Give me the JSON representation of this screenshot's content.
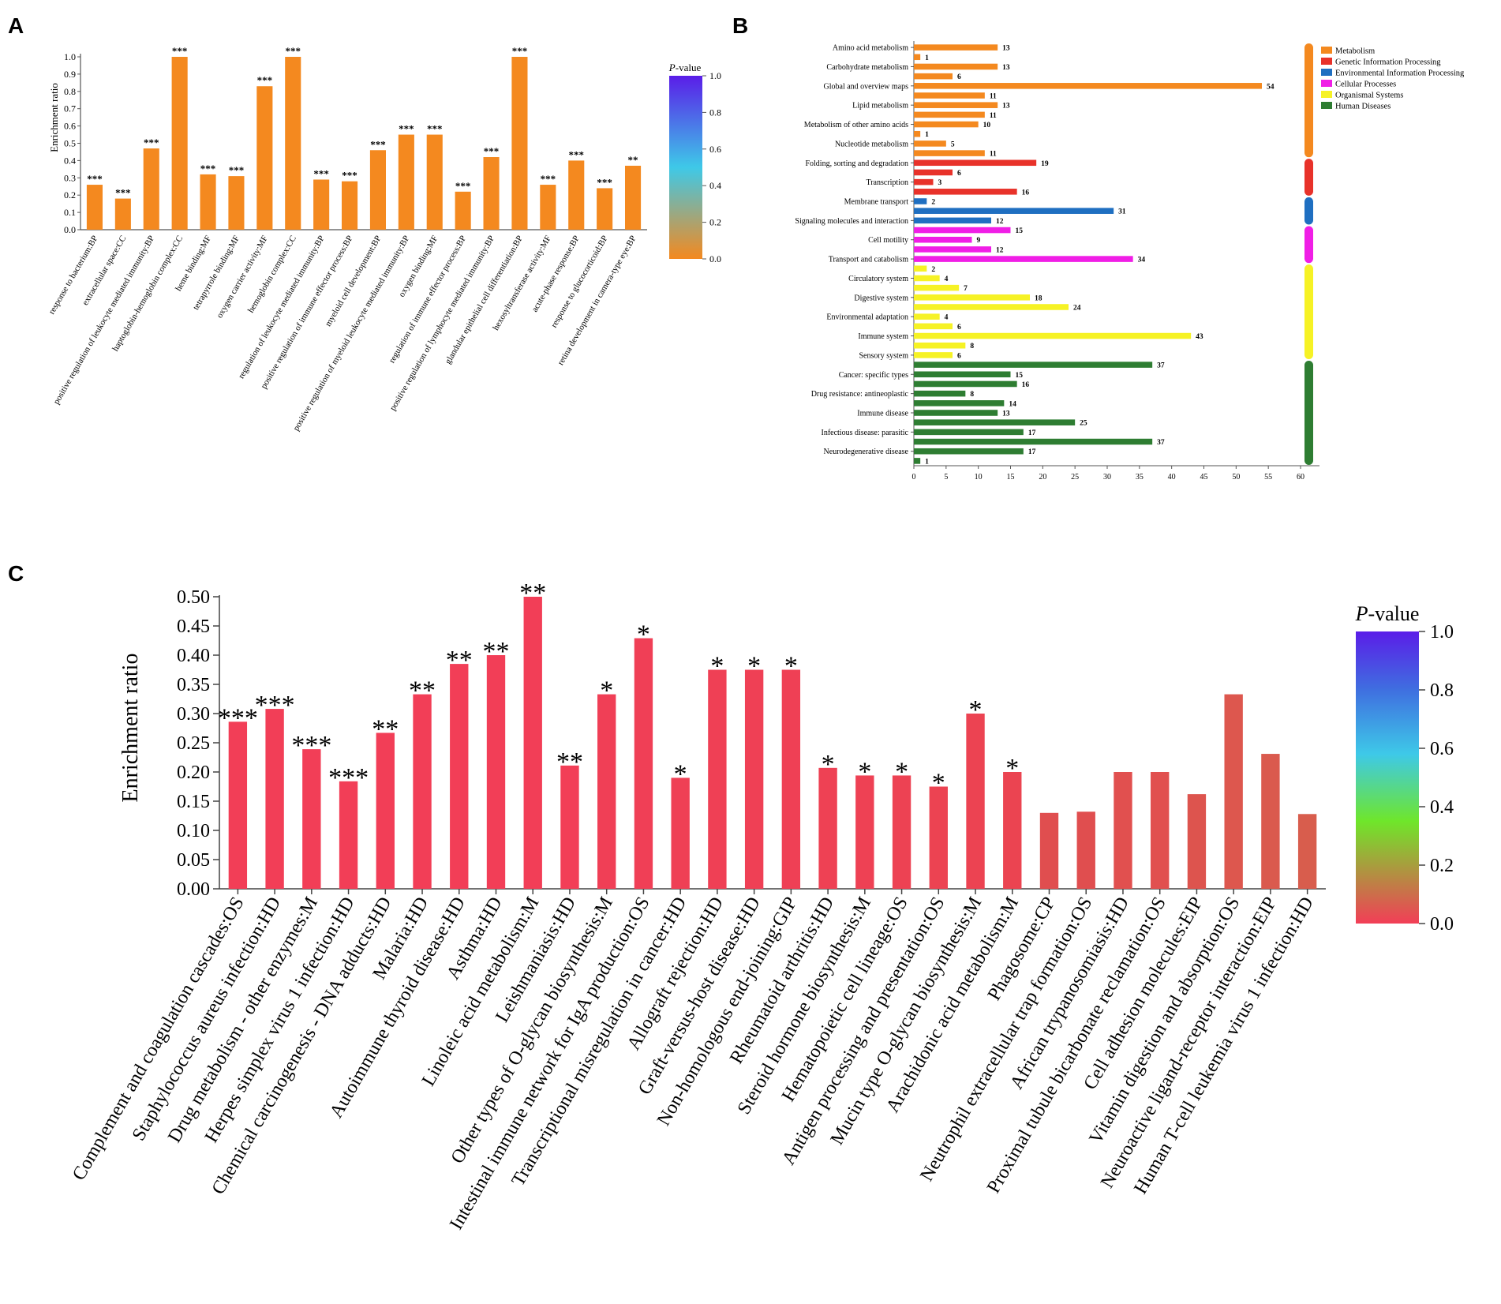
{
  "panels": [
    {
      "label": "A",
      "chart_data": {
        "type": "bar",
        "ylabel": "Enrichment ratio",
        "ylim": [
          0,
          1.0
        ],
        "yticks": [
          "0.0",
          "0.1",
          "0.2",
          "0.3",
          "0.4",
          "0.5",
          "0.6",
          "0.7",
          "0.8",
          "0.9",
          "1.0"
        ],
        "bar_color": "#f4891f",
        "categories": [
          "response to bacterium:BP",
          "extracellular space:CC",
          "positive regulation of leukocyte mediated immunity:BP",
          "haptoglobin-hemoglobin complex:CC",
          "heme binding:MF",
          "tetrapyrrole binding:MF",
          "oxygen carrier activity:MF",
          "hemoglobin complex:CC",
          "regulation of leukocyte mediated immunity:BP",
          "positive regulation of immune effector process:BP",
          "myeloid cell development:BP",
          "positive regulation of myeloid leukocyte mediated immunity:BP",
          "oxygen binding:MF",
          "regulation of immune effector process:BP",
          "positive regulation of lymphocyte mediated immunity:BP",
          "glandular epithelial cell differentiation:BP",
          "hexosyltransferase activity:MF",
          "acute-phase response:BP",
          "response to glucocorticoid:BP",
          "retina development in camera-type eye:BP"
        ],
        "values": [
          0.26,
          0.18,
          0.47,
          1.0,
          0.32,
          0.31,
          0.83,
          1.0,
          0.29,
          0.28,
          0.46,
          0.55,
          0.55,
          0.22,
          0.42,
          1.0,
          0.26,
          0.4,
          0.24,
          0.37
        ],
        "significance": [
          "***",
          "***",
          "***",
          "***",
          "***",
          "***",
          "***",
          "***",
          "***",
          "***",
          "***",
          "***",
          "***",
          "***",
          "***",
          "***",
          "***",
          "***",
          "***",
          "**"
        ],
        "colorbar": {
          "title": "P-value",
          "title_italic": "P",
          "title_rest": "-value",
          "ticks": [
            "0.0",
            "0.2",
            "0.4",
            "0.6",
            "0.8",
            "1.0"
          ],
          "range": [
            0,
            1
          ],
          "colors": [
            "#f4891f",
            "#3ec9e8",
            "#5a1de8"
          ]
        }
      }
    },
    {
      "label": "B",
      "chart_data": {
        "type": "bar",
        "orientation": "horizontal",
        "xlim": [
          0,
          60
        ],
        "xticks": [
          "0",
          "5",
          "10",
          "15",
          "20",
          "25",
          "30",
          "35",
          "40",
          "45",
          "50",
          "55",
          "60"
        ],
        "bars": [
          {
            "label": "Amino acid metabolism",
            "value": 13,
            "group": 0
          },
          {
            "label": "",
            "value": 1,
            "group": 0
          },
          {
            "label": "Carbohydrate metabolism",
            "value": 13,
            "group": 0
          },
          {
            "label": "",
            "value": 6,
            "group": 0
          },
          {
            "label": "Global and overview maps",
            "value": 54,
            "group": 0
          },
          {
            "label": "",
            "value": 11,
            "group": 0
          },
          {
            "label": "Lipid metabolism",
            "value": 13,
            "group": 0
          },
          {
            "label": "",
            "value": 11,
            "group": 0
          },
          {
            "label": "Metabolism of other amino acids",
            "value": 10,
            "group": 0
          },
          {
            "label": "",
            "value": 1,
            "group": 0
          },
          {
            "label": "Nucleotide metabolism",
            "value": 5,
            "group": 0
          },
          {
            "label": "",
            "value": 11,
            "group": 0
          },
          {
            "label": "Folding, sorting and degradation",
            "value": 19,
            "group": 1
          },
          {
            "label": "",
            "value": 6,
            "group": 1
          },
          {
            "label": "Transcription",
            "value": 3,
            "group": 1
          },
          {
            "label": "",
            "value": 16,
            "group": 1
          },
          {
            "label": "Membrane transport",
            "value": 2,
            "group": 2
          },
          {
            "label": "",
            "value": 31,
            "group": 2
          },
          {
            "label": "Signaling molecules and interaction",
            "value": 12,
            "group": 2
          },
          {
            "label": "",
            "value": 15,
            "group": 3
          },
          {
            "label": "Cell motility",
            "value": 9,
            "group": 3
          },
          {
            "label": "",
            "value": 12,
            "group": 3
          },
          {
            "label": "Transport and catabolism",
            "value": 34,
            "group": 3
          },
          {
            "label": "",
            "value": 2,
            "group": 4
          },
          {
            "label": "Circulatory system",
            "value": 4,
            "group": 4
          },
          {
            "label": "",
            "value": 7,
            "group": 4
          },
          {
            "label": "Digestive system",
            "value": 18,
            "group": 4
          },
          {
            "label": "",
            "value": 24,
            "group": 4
          },
          {
            "label": "Environmental adaptation",
            "value": 4,
            "group": 4
          },
          {
            "label": "",
            "value": 6,
            "group": 4
          },
          {
            "label": "Immune system",
            "value": 43,
            "group": 4
          },
          {
            "label": "",
            "value": 8,
            "group": 4
          },
          {
            "label": "Sensory system",
            "value": 6,
            "group": 4
          },
          {
            "label": "",
            "value": 37,
            "group": 5
          },
          {
            "label": "Cancer: specific types",
            "value": 15,
            "group": 5
          },
          {
            "label": "",
            "value": 16,
            "group": 5
          },
          {
            "label": "Drug resistance: antineoplastic",
            "value": 8,
            "group": 5
          },
          {
            "label": "",
            "value": 14,
            "group": 5
          },
          {
            "label": "Immune disease",
            "value": 13,
            "group": 5
          },
          {
            "label": "",
            "value": 25,
            "group": 5
          },
          {
            "label": "Infectious disease: parasitic",
            "value": 17,
            "group": 5
          },
          {
            "label": "",
            "value": 37,
            "group": 5
          },
          {
            "label": "Neurodegenerative disease",
            "value": 17,
            "group": 5
          },
          {
            "label": "",
            "value": 1,
            "group": 5
          }
        ],
        "legend": [
          {
            "name": "Metabolism",
            "color": "#f4891f"
          },
          {
            "name": "Genetic Information Processing",
            "color": "#e8322a"
          },
          {
            "name": "Environmental Information Processing",
            "color": "#1f6fc1"
          },
          {
            "name": "Cellular Processes",
            "color": "#f01ee6"
          },
          {
            "name": "Organismal Systems",
            "color": "#f6f225"
          },
          {
            "name": "Human Diseases",
            "color": "#2e7d32"
          }
        ]
      }
    },
    {
      "label": "C",
      "chart_data": {
        "type": "bar",
        "ylabel": "Enrichment ratio",
        "ylim": [
          0,
          0.5
        ],
        "yticks": [
          "0.00",
          "0.05",
          "0.10",
          "0.15",
          "0.20",
          "0.25",
          "0.30",
          "0.35",
          "0.40",
          "0.45",
          "0.50"
        ],
        "categories": [
          "Complement and coagulation cascades:OS",
          "Staphylococcus aureus infection:HD",
          "Drug metabolism - other enzymes:M",
          "Herpes simplex virus 1 infection:HD",
          "Chemical carcinogenesis - DNA adducts:HD",
          "Malaria:HD",
          "Autoimmune thyroid disease:HD",
          "Asthma:HD",
          "Linoleic acid metabolism:M",
          "Leishmaniasis:HD",
          "Other types of O-glycan biosynthesis:M",
          "Intestinal immune network for IgA production:OS",
          "Transcriptional misregulation in cancer:HD",
          "Allograft rejection:HD",
          "Graft-versus-host disease:HD",
          "Non-homologous end-joining:GIP",
          "Rheumatoid arthritis:HD",
          "Steroid hormone biosynthesis:M",
          "Hematopoietic cell lineage:OS",
          "Antigen processing and presentation:OS",
          "Mucin type O-glycan biosynthesis:M",
          "Arachidonic acid metabolism:M",
          "Phagosome:CP",
          "Neutrophil extracellular trap formation:OS",
          "African trypanosomiasis:HD",
          "Proximal tubule bicarbonate reclamation:OS",
          "Cell adhesion molecules:EIP",
          "Vitamin digestion and absorption:OS",
          "Neuroactive ligand-receptor interaction:EIP",
          "Human T-cell leukemia virus 1 infection:HD"
        ],
        "values": [
          0.286,
          0.308,
          0.239,
          0.184,
          0.267,
          0.333,
          0.385,
          0.4,
          0.5,
          0.211,
          0.333,
          0.429,
          0.19,
          0.375,
          0.375,
          0.375,
          0.207,
          0.194,
          0.194,
          0.175,
          0.3,
          0.2,
          0.13,
          0.132,
          0.2,
          0.2,
          0.162,
          0.333,
          0.231,
          0.128
        ],
        "significance": [
          "***",
          "***",
          "***",
          "***",
          "**",
          "**",
          "**",
          "**",
          "**",
          "**",
          "*",
          "*",
          "*",
          "*",
          "*",
          "*",
          "*",
          "*",
          "*",
          "*",
          "*",
          "*",
          "",
          "",
          "",
          "",
          "",
          "",
          "",
          ""
        ],
        "bar_colors": [
          "#f23e57",
          "#f23e57",
          "#f23e57",
          "#f23e57",
          "#f23e57",
          "#f23e57",
          "#f23e57",
          "#f23e57",
          "#f23e57",
          "#f23e57",
          "#f03f56",
          "#f03f56",
          "#ef4055",
          "#ef4055",
          "#ef4055",
          "#ef4055",
          "#ee4154",
          "#ee4154",
          "#ed4253",
          "#ec4352",
          "#ec4352",
          "#eb4451",
          "#e04e4f",
          "#e04e4f",
          "#e1504f",
          "#e1504f",
          "#dd544e",
          "#dd574e",
          "#da5a4e",
          "#d85d4d"
        ],
        "colorbar": {
          "title": "P-value",
          "title_italic": "P",
          "title_rest": "-value",
          "ticks": [
            "0.0",
            "0.2",
            "0.4",
            "0.6",
            "0.8",
            "1.0"
          ],
          "range": [
            0,
            1
          ],
          "colors": [
            "#f23e57",
            "#6fe62a",
            "#3ec9e8",
            "#3f6fe0",
            "#5a1de8"
          ]
        }
      }
    }
  ]
}
